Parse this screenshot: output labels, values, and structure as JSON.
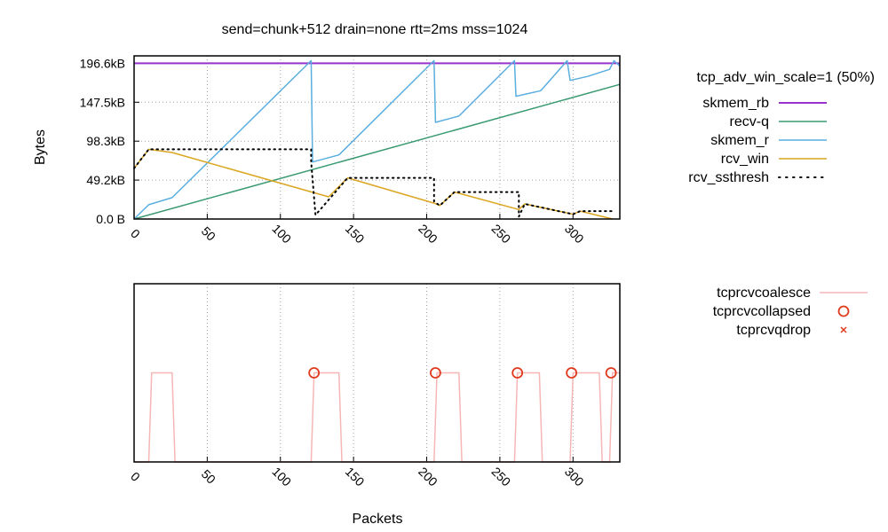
{
  "chart_data": [
    {
      "type": "line",
      "title": "send=chunk+512 drain=none rtt=2ms mss=1024",
      "ylabel": "Bytes",
      "xlabel": "",
      "xlim": [
        0,
        332
      ],
      "ylim": [
        0,
        206000
      ],
      "x_ticks": [
        "0",
        "50",
        "100",
        "150",
        "200",
        "250",
        "300"
      ],
      "y_ticks": [
        {
          "label": "0.0 B",
          "value": 0
        },
        {
          "label": "49.2kB",
          "value": 49152
        },
        {
          "label": "98.3kB",
          "value": 98304
        },
        {
          "label": "147.5kB",
          "value": 147456
        },
        {
          "label": "196.6kB",
          "value": 196608
        }
      ],
      "grid": true,
      "legend_title": "tcp_adv_win_scale=1 (50%)",
      "legend_position": "right",
      "series": [
        {
          "name": "skmem_rb",
          "color": "#9932cc",
          "style": "solid",
          "x": [
            0,
            332
          ],
          "y": [
            196608,
            196608
          ]
        },
        {
          "name": "recv-q",
          "color": "#3a9a72",
          "style": "solid",
          "x": [
            0,
            332
          ],
          "y": [
            0,
            170000
          ]
        },
        {
          "name": "skmem_r",
          "color": "#5aaee0",
          "style": "solid",
          "x": [
            0,
            10,
            26,
            121,
            122,
            140,
            205,
            206,
            222,
            260,
            261,
            278,
            296,
            298,
            310,
            325,
            328,
            332
          ],
          "y": [
            0,
            18000,
            27000,
            200000,
            72000,
            81000,
            200000,
            122000,
            130000,
            200000,
            155000,
            162000,
            200000,
            175000,
            180000,
            189000,
            200000,
            193000
          ]
        },
        {
          "name": "rcv_win",
          "color": "#daa520",
          "style": "solid",
          "x": [
            0,
            10,
            26,
            133,
            146,
            205,
            209,
            219,
            263,
            267,
            300,
            305,
            327
          ],
          "y": [
            64000,
            88000,
            84000,
            28000,
            52000,
            20000,
            17000,
            34000,
            12000,
            19000,
            6000,
            10000,
            0
          ]
        },
        {
          "name": "rcv_ssthresh",
          "color": "#000000",
          "style": "dotted",
          "x": [
            0,
            10,
            26,
            121,
            121,
            124,
            146,
            205,
            205,
            209,
            219,
            263,
            263,
            267,
            300,
            305,
            327
          ],
          "y": [
            64000,
            88000,
            88000,
            88000,
            72000,
            5000,
            52000,
            52000,
            22000,
            17000,
            34000,
            34000,
            3000,
            19000,
            6000,
            10000,
            10000
          ]
        }
      ]
    },
    {
      "type": "line",
      "xlabel": "Packets",
      "ylabel": "",
      "xlim": [
        0,
        332
      ],
      "ylim": [
        0,
        1
      ],
      "x_ticks": [
        "0",
        "50",
        "100",
        "150",
        "200",
        "250",
        "300"
      ],
      "grid": true,
      "legend_position": "right",
      "series": [
        {
          "name": "tcprcvcoalesce",
          "color": "#f4b7b5",
          "style": "solid",
          "x": [
            0,
            10,
            12,
            26,
            28,
            121,
            123,
            140,
            142,
            205,
            207,
            222,
            224,
            260,
            262,
            277,
            279,
            298,
            300,
            318,
            320,
            325,
            327,
            332
          ],
          "y": [
            0,
            0,
            0.5,
            0.5,
            0,
            0,
            0.5,
            0.5,
            0,
            0,
            0.5,
            0.5,
            0,
            0,
            0.5,
            0.5,
            0,
            0,
            0.5,
            0.5,
            0,
            0,
            0.5,
            0.5
          ]
        },
        {
          "name": "tcprcvcollapsed",
          "color": "#e03a1e",
          "style": "circles",
          "x": [
            123,
            206,
            262,
            299,
            326
          ],
          "y": [
            0.5,
            0.5,
            0.5,
            0.5,
            0.5
          ]
        },
        {
          "name": "tcprcvqdrop",
          "color": "#e03a1e",
          "style": "crosses",
          "x": [],
          "y": []
        }
      ]
    }
  ]
}
